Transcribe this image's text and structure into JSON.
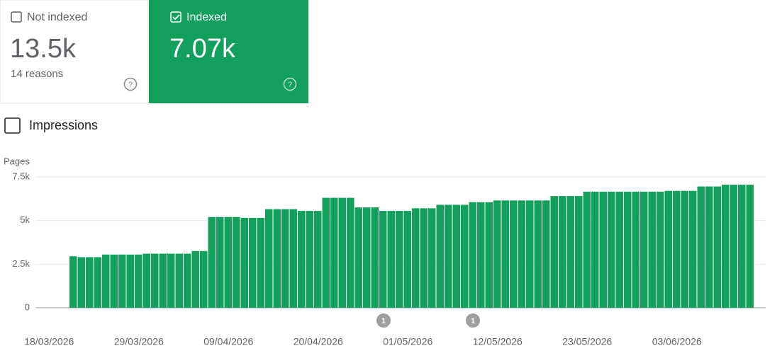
{
  "cards": [
    {
      "label": "Not indexed",
      "value": "13.5k",
      "detail": "14 reasons"
    },
    {
      "label": "Indexed",
      "value": "7.07k"
    }
  ],
  "toggle": "Impressions",
  "chart_data": {
    "type": "bar",
    "y_label": "Pages",
    "color": "#12a05c",
    "grid": true,
    "categories": [
      "18/03/2026",
      null,
      null,
      null,
      null,
      null,
      null,
      null,
      null,
      null,
      null,
      "29/03/2026",
      null,
      null,
      null,
      null,
      null,
      null,
      null,
      null,
      null,
      null,
      "09/04/2026",
      null,
      null,
      null,
      null,
      null,
      null,
      null,
      null,
      null,
      null,
      "20/04/2026",
      null,
      null,
      null,
      null,
      null,
      null,
      null,
      null,
      null,
      null,
      "01/05/2026",
      null,
      null,
      null,
      null,
      null,
      null,
      null,
      null,
      null,
      null,
      "12/05/2026",
      null,
      null,
      null,
      null,
      null,
      null,
      null,
      null,
      null,
      null,
      "23/05/2026",
      null,
      null,
      null,
      null,
      null,
      null,
      null,
      null,
      null,
      null,
      "03/06/2026",
      null,
      null,
      null,
      null,
      null,
      null,
      null,
      null,
      null
    ],
    "values": [
      null,
      null,
      null,
      2950,
      2900,
      2900,
      2900,
      3050,
      3050,
      3050,
      3050,
      3050,
      3100,
      3100,
      3100,
      3100,
      3100,
      3100,
      3250,
      3250,
      5200,
      5200,
      5200,
      5200,
      5150,
      5150,
      5150,
      5650,
      5650,
      5650,
      5650,
      5550,
      5550,
      5550,
      6300,
      6300,
      6300,
      6300,
      5750,
      5750,
      5750,
      5550,
      5550,
      5550,
      5550,
      5700,
      5700,
      5700,
      5900,
      5900,
      5900,
      5900,
      6050,
      6050,
      6050,
      6150,
      6150,
      6150,
      6150,
      6150,
      6150,
      6150,
      6400,
      6400,
      6400,
      6400,
      6650,
      6650,
      6650,
      6650,
      6650,
      6650,
      6650,
      6650,
      6650,
      6650,
      6700,
      6700,
      6700,
      6700,
      6950,
      6950,
      6950,
      7050,
      7050,
      7050,
      7050
    ],
    "ylim": [
      0,
      7500
    ],
    "yticks": [
      0,
      {
        "value": 2500,
        "label": "2.5k"
      },
      {
        "value": 5000,
        "label": "5k"
      },
      {
        "value": 7500,
        "label": "7.5k"
      }
    ],
    "annotations": [
      "1",
      "1"
    ]
  }
}
